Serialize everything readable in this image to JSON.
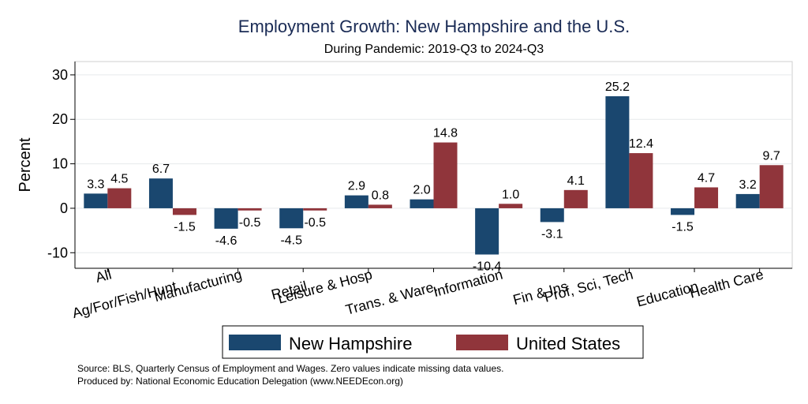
{
  "chart_data": {
    "type": "bar",
    "title": "Employment Growth: New Hampshire and the U.S.",
    "subtitle": "During Pandemic: 2019-Q3 to 2024-Q3",
    "ylabel": "Percent",
    "xlabel": "",
    "ylim": [
      -13.5,
      33
    ],
    "yticks": [
      -10,
      0,
      10,
      20,
      30
    ],
    "grid": true,
    "legend_position": "bottom",
    "categories": [
      "All",
      "Ag/For/Fish/Hunt",
      "Manufacturing",
      "Retail",
      "Leisure & Hosp",
      "Trans. & Ware.",
      "Information",
      "Fin & Ins",
      "Prof, Sci, Tech",
      "Education",
      "Health Care"
    ],
    "series": [
      {
        "name": "New Hampshire",
        "color": "#1a476f",
        "values": [
          3.3,
          6.7,
          -4.6,
          -4.5,
          2.9,
          2.0,
          -10.4,
          -3.1,
          25.2,
          -1.5,
          3.2
        ],
        "labels": [
          "3.3",
          "6.7",
          "-4.6",
          "-4.5",
          "2.9",
          "2.0",
          "-10.4",
          "-3.1",
          "25.2",
          "-1.5",
          "3.2"
        ]
      },
      {
        "name": "United States",
        "color": "#90353b",
        "values": [
          4.5,
          -1.5,
          -0.5,
          -0.5,
          0.8,
          14.8,
          1.0,
          4.1,
          12.4,
          4.7,
          9.7
        ],
        "labels": [
          "4.5",
          "-1.5",
          "-0.5",
          "-0.5",
          "0.8",
          "14.8",
          "1.0",
          "4.1",
          "12.4",
          "4.7",
          "9.7"
        ]
      }
    ]
  },
  "notes": {
    "source": "Source: BLS, Quarterly Census of Employment and Wages. Zero values indicate missing data values.",
    "produced_by": "Produced by: National Economic Education Delegation (www.NEEDEcon.org)"
  }
}
